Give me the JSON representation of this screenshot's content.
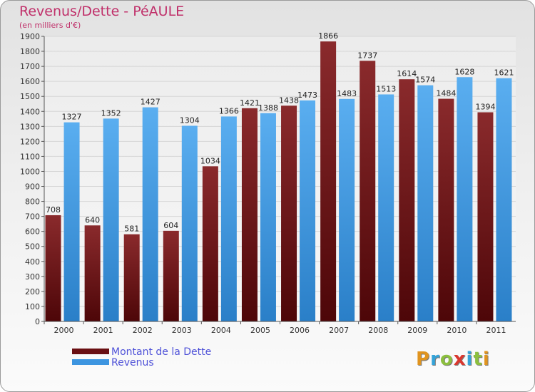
{
  "header": {
    "title": "Revenus/Dette - PéAULE",
    "subtitle": "(en milliers d'€)"
  },
  "legend": {
    "debt_label": "Montant de la Dette",
    "revenue_label": "Revenus"
  },
  "logo": {
    "text": "Proxiti",
    "letters": [
      "P",
      "r",
      "o",
      "x",
      "i",
      "t",
      "i"
    ],
    "colors": [
      "#e0941f",
      "#35a3d8",
      "#8cbf3f",
      "#d9382f",
      "#35a3d8",
      "#8cbf3f",
      "#e0941f"
    ]
  },
  "colors": {
    "debt": "#7a1a1c",
    "debt_light": "#a53a3c",
    "revenue": "#3d95e0",
    "revenue_light": "#6cb6f0"
  },
  "chart_data": {
    "type": "bar",
    "categories": [
      "2000",
      "2001",
      "2002",
      "2003",
      "2004",
      "2005",
      "2006",
      "2007",
      "2008",
      "2009",
      "2010",
      "2011"
    ],
    "series": [
      {
        "name": "Montant de la Dette",
        "values": [
          708,
          640,
          581,
          604,
          1034,
          1421,
          1438,
          1866,
          1737,
          1614,
          1484,
          1394
        ]
      },
      {
        "name": "Revenus",
        "values": [
          1327,
          1352,
          1427,
          1304,
          1366,
          1388,
          1473,
          1483,
          1513,
          1574,
          1628,
          1621
        ]
      }
    ],
    "title": "Revenus/Dette - PéAULE",
    "subtitle": "(en milliers d'€)",
    "xlabel": "",
    "ylabel": "",
    "ylim": [
      0,
      1900
    ],
    "yticks": [
      "0",
      "100",
      "200",
      "300",
      "400",
      "500",
      "600",
      "700",
      "800",
      "900",
      "1000",
      "1100",
      "1200",
      "1300",
      "1400",
      "1500",
      "1600",
      "1700",
      "1800",
      "1900"
    ],
    "grid": true,
    "legend_position": "bottom-left"
  }
}
